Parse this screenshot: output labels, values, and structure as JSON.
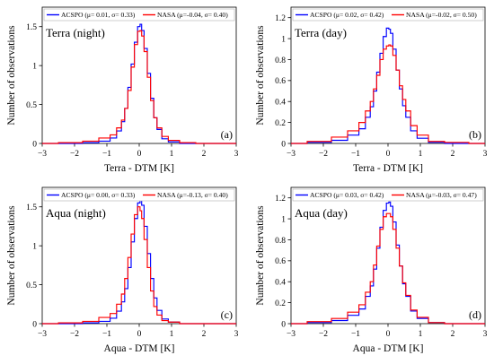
{
  "chart_data": [
    {
      "type": "line",
      "panel_id": "a",
      "title": "Terra (night)",
      "panel_label": "(a)",
      "xlabel": "Terra - DTM [K]",
      "ylabel": "Number of observations",
      "xlim": [
        -3,
        3
      ],
      "ylim": [
        0,
        1.75
      ],
      "xticks": [
        -3,
        -2,
        -1,
        0,
        1,
        2,
        3
      ],
      "yticks": [
        0,
        0.5,
        1,
        1.5
      ],
      "x": [
        -3.0,
        -2.0,
        -1.5,
        -1.0,
        -0.8,
        -0.6,
        -0.5,
        -0.4,
        -0.3,
        -0.2,
        -0.1,
        0.0,
        0.05,
        0.1,
        0.2,
        0.3,
        0.4,
        0.5,
        0.6,
        0.8,
        1.0,
        1.5,
        2.0,
        3.0
      ],
      "series": [
        {
          "name": "ACSPO (μ= 0.01, σ= 0.33)",
          "color": "#0000ff",
          "values": [
            0.0,
            0.0,
            0.01,
            0.03,
            0.07,
            0.16,
            0.28,
            0.45,
            0.72,
            1.02,
            1.3,
            1.5,
            1.53,
            1.45,
            1.22,
            0.9,
            0.58,
            0.33,
            0.18,
            0.06,
            0.02,
            0.0,
            0.0,
            0.0
          ]
        },
        {
          "name": "NASA (μ=-0.04, σ= 0.40)",
          "color": "#ff0000",
          "values": [
            0.0,
            0.01,
            0.03,
            0.07,
            0.11,
            0.2,
            0.3,
            0.45,
            0.68,
            0.98,
            1.27,
            1.44,
            1.45,
            1.38,
            1.18,
            0.85,
            0.55,
            0.33,
            0.2,
            0.09,
            0.04,
            0.01,
            0.0,
            0.0
          ]
        }
      ],
      "legend_position": "top"
    },
    {
      "type": "line",
      "panel_id": "b",
      "title": "Terra (day)",
      "panel_label": "(b)",
      "xlabel": "Terra - DTM [K]",
      "ylabel": "Number of observations",
      "xlim": [
        -3,
        3
      ],
      "ylim": [
        0,
        1.3
      ],
      "xticks": [
        -3,
        -2,
        -1,
        0,
        1,
        2,
        3
      ],
      "yticks": [
        0,
        0.2,
        0.4,
        0.6,
        0.8,
        1,
        1.2
      ],
      "x": [
        -3.0,
        -2.0,
        -1.5,
        -1.0,
        -0.8,
        -0.6,
        -0.5,
        -0.4,
        -0.3,
        -0.2,
        -0.1,
        0.0,
        0.05,
        0.1,
        0.2,
        0.3,
        0.4,
        0.5,
        0.6,
        0.8,
        1.0,
        1.5,
        2.0,
        3.0
      ],
      "series": [
        {
          "name": "ACSPO (μ= 0.02, σ= 0.42)",
          "color": "#0000ff",
          "values": [
            0.0,
            0.01,
            0.03,
            0.08,
            0.14,
            0.25,
            0.35,
            0.5,
            0.68,
            0.86,
            1.02,
            1.1,
            1.09,
            1.05,
            0.9,
            0.7,
            0.52,
            0.36,
            0.25,
            0.12,
            0.05,
            0.01,
            0.0,
            0.0
          ]
        },
        {
          "name": "NASA (μ=-0.02, σ= 0.50)",
          "color": "#ff0000",
          "values": [
            0.0,
            0.02,
            0.06,
            0.12,
            0.2,
            0.31,
            0.4,
            0.52,
            0.65,
            0.8,
            0.9,
            0.93,
            0.94,
            0.93,
            0.84,
            0.7,
            0.55,
            0.42,
            0.31,
            0.17,
            0.08,
            0.02,
            0.01,
            0.0
          ]
        }
      ],
      "legend_position": "top"
    },
    {
      "type": "line",
      "panel_id": "c",
      "title": "Aqua (night)",
      "panel_label": "(c)",
      "xlabel": "Aqua - DTM [K]",
      "ylabel": "Number of observations",
      "xlim": [
        -3,
        3
      ],
      "ylim": [
        0,
        1.75
      ],
      "xticks": [
        -3,
        -2,
        -1,
        0,
        1,
        2,
        3
      ],
      "yticks": [
        0,
        0.5,
        1,
        1.5
      ],
      "x": [
        -3.0,
        -2.0,
        -1.5,
        -1.0,
        -0.8,
        -0.6,
        -0.5,
        -0.4,
        -0.3,
        -0.2,
        -0.1,
        0.0,
        0.05,
        0.1,
        0.2,
        0.3,
        0.4,
        0.5,
        0.6,
        0.8,
        1.0,
        1.5,
        2.0,
        3.0
      ],
      "series": [
        {
          "name": "ACSPO (μ= 0.00, σ= 0.33)",
          "color": "#0000ff",
          "values": [
            0.0,
            0.0,
            0.01,
            0.03,
            0.07,
            0.16,
            0.28,
            0.45,
            0.72,
            1.05,
            1.35,
            1.55,
            1.6,
            1.52,
            1.25,
            0.9,
            0.58,
            0.33,
            0.17,
            0.06,
            0.02,
            0.0,
            0.0,
            0.0
          ]
        },
        {
          "name": "NASA (μ=-0.13, σ= 0.40)",
          "color": "#ff0000",
          "values": [
            0.0,
            0.01,
            0.03,
            0.08,
            0.13,
            0.25,
            0.38,
            0.58,
            0.85,
            1.15,
            1.4,
            1.5,
            1.45,
            1.35,
            1.08,
            0.72,
            0.42,
            0.22,
            0.11,
            0.04,
            0.02,
            0.0,
            0.0,
            0.0
          ]
        }
      ],
      "legend_position": "top"
    },
    {
      "type": "line",
      "panel_id": "d",
      "title": "Aqua (day)",
      "panel_label": "(d)",
      "xlabel": "Aqua - DTM [K]",
      "ylabel": "Number of observations",
      "xlim": [
        -3,
        3
      ],
      "ylim": [
        0,
        1.3
      ],
      "xticks": [
        -3,
        -2,
        -1,
        0,
        1,
        2,
        3
      ],
      "yticks": [
        0,
        0.2,
        0.4,
        0.6,
        0.8,
        1,
        1.2
      ],
      "x": [
        -3.0,
        -2.0,
        -1.5,
        -1.0,
        -0.8,
        -0.6,
        -0.5,
        -0.4,
        -0.3,
        -0.2,
        -0.1,
        0.0,
        0.05,
        0.1,
        0.2,
        0.3,
        0.4,
        0.5,
        0.6,
        0.8,
        1.0,
        1.5,
        2.0,
        3.0
      ],
      "series": [
        {
          "name": "ACSPO (μ= 0.03, σ= 0.42)",
          "color": "#0000ff",
          "values": [
            0.0,
            0.01,
            0.03,
            0.08,
            0.14,
            0.26,
            0.36,
            0.52,
            0.72,
            0.92,
            1.08,
            1.15,
            1.16,
            1.12,
            0.97,
            0.75,
            0.55,
            0.38,
            0.26,
            0.12,
            0.05,
            0.01,
            0.0,
            0.0
          ]
        },
        {
          "name": "NASA (μ=-0.03, σ= 0.47)",
          "color": "#ff0000",
          "values": [
            0.0,
            0.02,
            0.05,
            0.11,
            0.18,
            0.3,
            0.4,
            0.56,
            0.74,
            0.9,
            1.02,
            1.05,
            1.05,
            1.02,
            0.9,
            0.72,
            0.55,
            0.39,
            0.27,
            0.13,
            0.06,
            0.01,
            0.0,
            0.0
          ]
        }
      ],
      "legend_position": "top"
    }
  ]
}
